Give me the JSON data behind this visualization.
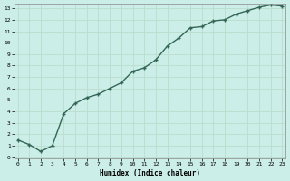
{
  "xlabel": "Humidex (Indice chaleur)",
  "ylabel": "",
  "background_color": "#cceee8",
  "grid_major_color": "#bbddd8",
  "grid_minor_color": "#bbddd8",
  "line_color": "#336655",
  "marker_color": "#336655",
  "x": [
    0,
    1,
    2,
    3,
    4,
    5,
    6,
    7,
    8,
    9,
    10,
    11,
    12,
    13,
    14,
    15,
    16,
    17,
    18,
    19,
    20,
    21,
    22,
    23
  ],
  "y": [
    1.5,
    1.1,
    0.5,
    1.0,
    3.8,
    4.7,
    5.2,
    5.5,
    6.0,
    6.5,
    7.5,
    7.8,
    8.5,
    9.7,
    10.4,
    11.3,
    11.4,
    11.9,
    12.0,
    12.5,
    12.8,
    13.1,
    13.3,
    13.2
  ],
  "xlim": [
    0,
    23
  ],
  "ylim": [
    0,
    13
  ],
  "xticks": [
    0,
    1,
    2,
    3,
    4,
    5,
    6,
    7,
    8,
    9,
    10,
    11,
    12,
    13,
    14,
    15,
    16,
    17,
    18,
    19,
    20,
    21,
    22,
    23
  ],
  "yticks": [
    0,
    1,
    2,
    3,
    4,
    5,
    6,
    7,
    8,
    9,
    10,
    11,
    12,
    13
  ]
}
